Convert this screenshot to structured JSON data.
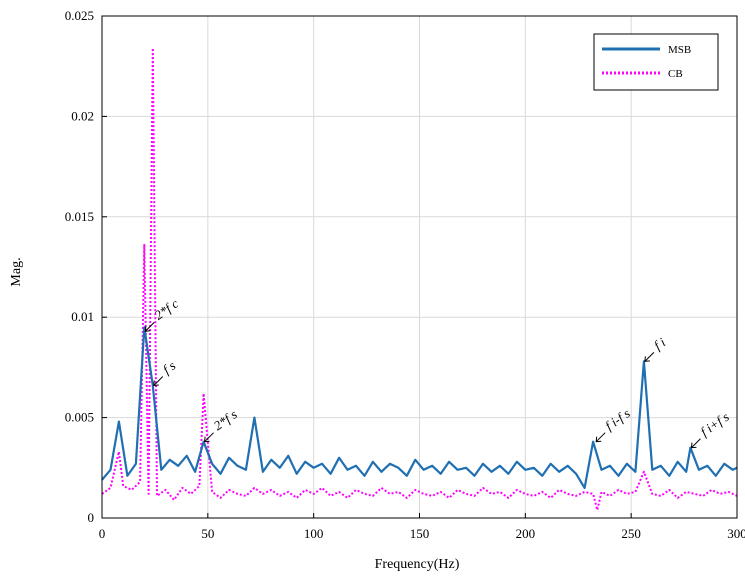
{
  "chart_data": {
    "type": "line",
    "xlabel": "Frequency(Hz)",
    "ylabel": "Mag.",
    "xlim": [
      0,
      300
    ],
    "ylim": [
      0,
      0.025
    ],
    "x_ticks": [
      "0",
      "50",
      "100",
      "150",
      "200",
      "250",
      "300"
    ],
    "y_ticks": [
      "0",
      "0.005",
      "0.01",
      "0.015",
      "0.02",
      "0.025"
    ],
    "grid": true,
    "legend_position": "top-right",
    "series": [
      {
        "name": "MSB",
        "style": "solid",
        "color": "#1f6fb2",
        "x": [
          0,
          4,
          8,
          12,
          16,
          20,
          24,
          28,
          32,
          36,
          40,
          44,
          48,
          52,
          56,
          60,
          64,
          68,
          72,
          76,
          80,
          84,
          88,
          92,
          96,
          100,
          104,
          108,
          112,
          116,
          120,
          124,
          128,
          132,
          136,
          140,
          144,
          148,
          152,
          156,
          160,
          164,
          168,
          172,
          176,
          180,
          184,
          188,
          192,
          196,
          200,
          204,
          208,
          212,
          216,
          220,
          224,
          228,
          232,
          236,
          240,
          244,
          248,
          252,
          256,
          260,
          264,
          268,
          272,
          276,
          278,
          282,
          286,
          290,
          294,
          298,
          300
        ],
        "y": [
          0.0019,
          0.0024,
          0.0048,
          0.0021,
          0.0027,
          0.0095,
          0.0066,
          0.0024,
          0.0029,
          0.0026,
          0.0031,
          0.0023,
          0.0038,
          0.0027,
          0.0022,
          0.003,
          0.0026,
          0.0024,
          0.005,
          0.0023,
          0.0029,
          0.0025,
          0.0031,
          0.0022,
          0.0028,
          0.0025,
          0.0027,
          0.0022,
          0.003,
          0.0024,
          0.0026,
          0.0021,
          0.0028,
          0.0023,
          0.0027,
          0.0025,
          0.0021,
          0.0029,
          0.0024,
          0.0026,
          0.0022,
          0.0028,
          0.0024,
          0.0025,
          0.0021,
          0.0027,
          0.0023,
          0.0026,
          0.0022,
          0.0028,
          0.0024,
          0.0025,
          0.0021,
          0.0027,
          0.0023,
          0.0026,
          0.0022,
          0.0015,
          0.0038,
          0.0024,
          0.0026,
          0.0021,
          0.0027,
          0.0023,
          0.0078,
          0.0024,
          0.0026,
          0.0021,
          0.0028,
          0.0023,
          0.0035,
          0.0024,
          0.0026,
          0.0021,
          0.0027,
          0.0024,
          0.0025
        ]
      },
      {
        "name": "CB",
        "style": "dotted",
        "color": "#ff00ff",
        "x": [
          0,
          4,
          8,
          10,
          14,
          18,
          20,
          22,
          24,
          26,
          30,
          34,
          38,
          42,
          46,
          48,
          52,
          56,
          60,
          64,
          68,
          72,
          76,
          80,
          84,
          88,
          92,
          96,
          100,
          104,
          108,
          112,
          116,
          120,
          124,
          128,
          132,
          136,
          140,
          144,
          148,
          152,
          156,
          160,
          164,
          168,
          172,
          176,
          180,
          184,
          188,
          192,
          196,
          200,
          204,
          208,
          212,
          216,
          220,
          224,
          228,
          232,
          234,
          236,
          240,
          244,
          248,
          252,
          256,
          260,
          264,
          268,
          272,
          276,
          280,
          284,
          288,
          292,
          296,
          300
        ],
        "y": [
          0.0012,
          0.0015,
          0.0033,
          0.0016,
          0.0014,
          0.0018,
          0.0136,
          0.0012,
          0.0234,
          0.0011,
          0.0014,
          0.0009,
          0.0015,
          0.0012,
          0.0016,
          0.0062,
          0.0013,
          0.001,
          0.0014,
          0.0012,
          0.0011,
          0.0015,
          0.0012,
          0.0014,
          0.0011,
          0.0013,
          0.001,
          0.0014,
          0.0012,
          0.0015,
          0.0011,
          0.0013,
          0.001,
          0.0014,
          0.0012,
          0.0011,
          0.0015,
          0.0012,
          0.0013,
          0.001,
          0.0014,
          0.0012,
          0.0011,
          0.0013,
          0.001,
          0.0014,
          0.0012,
          0.0011,
          0.0015,
          0.0012,
          0.0013,
          0.001,
          0.0014,
          0.0012,
          0.0011,
          0.0013,
          0.001,
          0.0014,
          0.0012,
          0.0011,
          0.0013,
          0.0012,
          0.0004,
          0.0013,
          0.0011,
          0.0014,
          0.0012,
          0.0013,
          0.0023,
          0.0012,
          0.0011,
          0.0014,
          0.001,
          0.0013,
          0.0012,
          0.0011,
          0.0014,
          0.0012,
          0.0013,
          0.0011
        ]
      }
    ],
    "annotations": [
      {
        "id": "2fc",
        "text": "2*f c",
        "x": 20,
        "y": 0.0093
      },
      {
        "id": "fs",
        "text": "f s",
        "x": 24,
        "y": 0.0066
      },
      {
        "id": "2fs",
        "text": "2*f s",
        "x": 48,
        "y": 0.0038
      },
      {
        "id": "fi-fs",
        "text": "f i-f s",
        "x": 233,
        "y": 0.0038
      },
      {
        "id": "fi",
        "text": "f i",
        "x": 256,
        "y": 0.0078
      },
      {
        "id": "fi+fs",
        "text": "f i+f s",
        "x": 278,
        "y": 0.0035
      }
    ]
  }
}
